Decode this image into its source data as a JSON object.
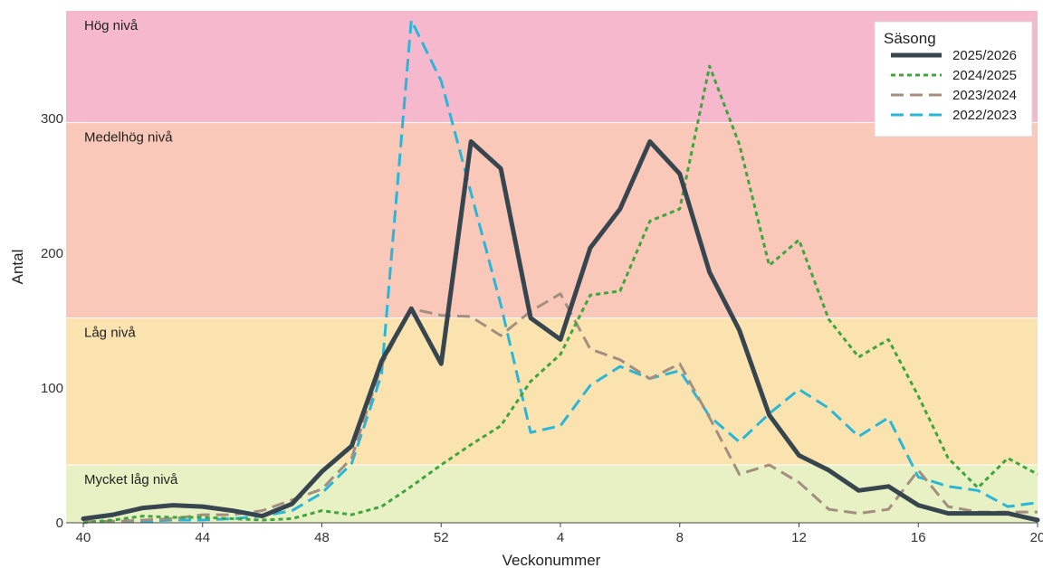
{
  "chart_data": {
    "type": "line",
    "xlabel": "Veckonummer",
    "ylabel": "Antal",
    "ylim": [
      0,
      380
    ],
    "x_ticks": [
      {
        "x": 40,
        "label": "40"
      },
      {
        "x": 44,
        "label": "44"
      },
      {
        "x": 48,
        "label": "48"
      },
      {
        "x": 52,
        "label": "52"
      },
      {
        "x": 56,
        "label": "4"
      },
      {
        "x": 60,
        "label": "8"
      },
      {
        "x": 64,
        "label": "12"
      },
      {
        "x": 68,
        "label": "16"
      },
      {
        "x": 72,
        "label": "20"
      }
    ],
    "y_ticks": [
      0,
      100,
      200,
      300
    ],
    "x": [
      40,
      41,
      42,
      43,
      44,
      45,
      46,
      47,
      48,
      49,
      50,
      51,
      52,
      53,
      54,
      55,
      56,
      57,
      58,
      59,
      60,
      61,
      62,
      63,
      64,
      65,
      66,
      67,
      68,
      69,
      70,
      71,
      72
    ],
    "bands": [
      {
        "label": "Mycket låg nivå",
        "from": 0,
        "to": 43,
        "color": "#e8f1c3"
      },
      {
        "label": "Låg nivå",
        "from": 43,
        "to": 152,
        "color": "#fbe3b0"
      },
      {
        "label": "Medelhög nivå",
        "from": 152,
        "to": 297,
        "color": "#f9c8b9"
      },
      {
        "label": "Hög nivå",
        "from": 297,
        "to": 380,
        "color": "#f5b8cc"
      }
    ],
    "legend": {
      "title": "Säsong",
      "position": "top-right"
    },
    "series": [
      {
        "name": "2025/2026",
        "color": "#37454f",
        "dash": "solid",
        "values": [
          3,
          6,
          11,
          13,
          12,
          9,
          5,
          14,
          38,
          57,
          120,
          159,
          118,
          283,
          263,
          152,
          136,
          204,
          233,
          283,
          259,
          186,
          143,
          80,
          50,
          39,
          24,
          27,
          13,
          7,
          7,
          7,
          2
        ]
      },
      {
        "name": "2024/2025",
        "color": "#3fa53f",
        "dash": "dotted",
        "values": [
          0,
          2,
          5,
          4,
          4,
          3,
          2,
          3,
          9,
          6,
          12,
          27,
          43,
          58,
          72,
          105,
          125,
          169,
          172,
          224,
          233,
          339,
          281,
          191,
          210,
          151,
          123,
          136,
          94,
          48,
          26,
          48,
          36
        ]
      },
      {
        "name": "2023/2024",
        "color": "#a38e80",
        "dash": "dashed",
        "values": [
          1,
          1,
          2,
          3,
          6,
          6,
          9,
          17,
          25,
          48,
          117,
          159,
          154,
          153,
          139,
          157,
          170,
          129,
          121,
          107,
          118,
          78,
          36,
          43,
          30,
          10,
          7,
          10,
          39,
          12,
          8,
          8,
          8
        ]
      },
      {
        "name": "2022/2023",
        "color": "#29b6d8",
        "dash": "dashed",
        "values": [
          1,
          1,
          1,
          2,
          2,
          3,
          5,
          9,
          22,
          44,
          110,
          373,
          328,
          245,
          162,
          67,
          72,
          102,
          116,
          107,
          113,
          79,
          60,
          81,
          99,
          85,
          64,
          78,
          34,
          27,
          24,
          12,
          15
        ]
      }
    ]
  }
}
